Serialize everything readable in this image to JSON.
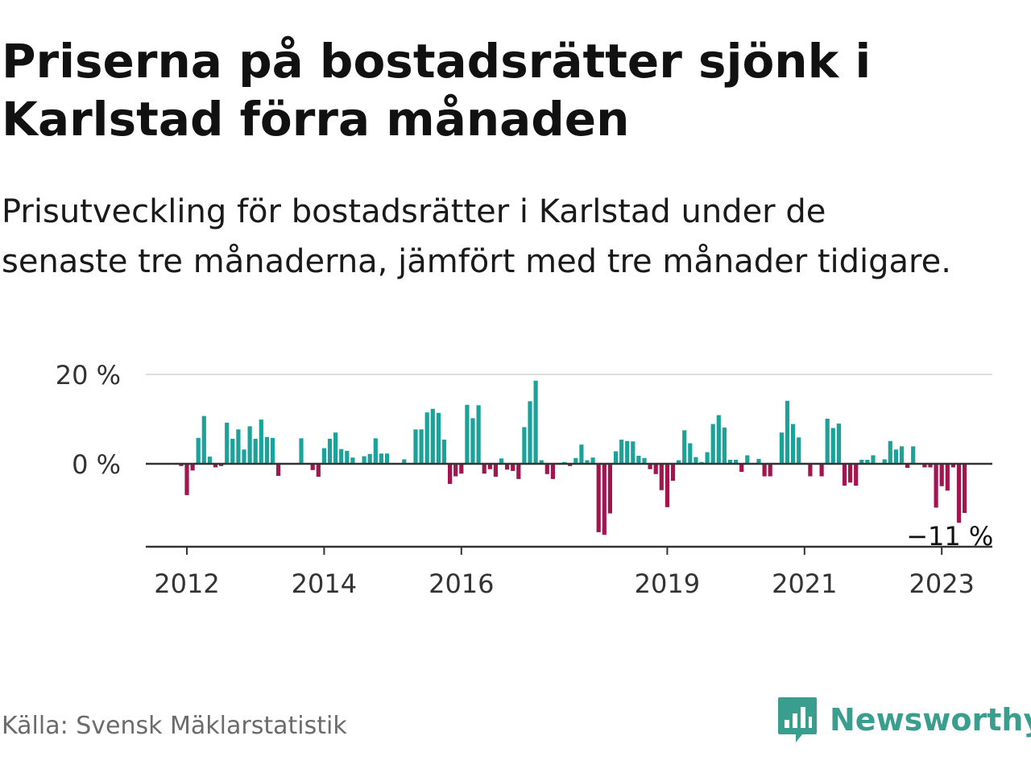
{
  "header": {
    "title": "Priserna på bostadsrätter sjönk i Karlstad förra månaden",
    "subtitle": "Prisutveckling för bostadsrätter i Karlstad under de senaste tre månaderna, jämfört med tre månader tidigare."
  },
  "footer": {
    "source": "Källa: Svensk Mäklarstatistik",
    "brand": "Newsworthy"
  },
  "colors": {
    "positive": "#1aa39a",
    "negative": "#a3154f",
    "grid": "#dddddd",
    "zero_line": "#333333",
    "axis": "#333333",
    "brand": "#3a9e8f"
  },
  "chart_data": {
    "type": "bar",
    "title": "",
    "xlabel": "",
    "ylabel": "",
    "y_unit": "%",
    "ylim": [
      -18,
      20
    ],
    "y_ticks": [
      {
        "value": 0,
        "label": "0 %"
      },
      {
        "value": 20,
        "label": "20 %"
      }
    ],
    "x_ticks": [
      {
        "date": "2012-01",
        "label": "2012"
      },
      {
        "date": "2014-01",
        "label": "2014"
      },
      {
        "date": "2016-01",
        "label": "2016"
      },
      {
        "date": "2019-01",
        "label": "2019"
      },
      {
        "date": "2021-01",
        "label": "2021"
      },
      {
        "date": "2023-01",
        "label": "2023"
      }
    ],
    "start_month": "2011-12",
    "annotation": {
      "date": "2023-01",
      "label": "−11 %",
      "value": -11
    },
    "grid": true,
    "values": [
      -0.5,
      -7,
      -1.5,
      5.8,
      10.7,
      1.6,
      -0.8,
      -0.5,
      9.2,
      5.6,
      7.7,
      3.2,
      8.4,
      5.6,
      9.9,
      6,
      5.8,
      -2.7,
      null,
      null,
      null,
      5.7,
      null,
      -1.4,
      -2.9,
      3.5,
      5.6,
      7,
      3.3,
      2.9,
      1.4,
      null,
      1.7,
      2.2,
      5.7,
      2.3,
      2.3,
      null,
      null,
      1,
      null,
      7.7,
      7.7,
      11.5,
      12.3,
      11.4,
      5.4,
      -4.5,
      -2.8,
      -2.2,
      13.2,
      10.2,
      13.1,
      -2.2,
      -1.2,
      -2.9,
      1.2,
      -1.3,
      -1.6,
      -3.4,
      8.2,
      14,
      18.6,
      0.8,
      -2.3,
      -3.4,
      null,
      0.4,
      -0.5,
      1.3,
      4.3,
      0.8,
      1.4,
      -15.3,
      -15.9,
      -11.1,
      2.8,
      5.4,
      5.1,
      5,
      1.8,
      1.3,
      -1.2,
      -2.3,
      -5.9,
      -9.7,
      -3.8,
      0.8,
      7.5,
      4.6,
      1.5,
      0.4,
      2.6,
      8.9,
      10.9,
      8.1,
      0.9,
      0.9,
      -1.8,
      1.9,
      null,
      1.1,
      -2.8,
      -2.8,
      null,
      7,
      14.1,
      8.9,
      5.9,
      null,
      -2.8,
      null,
      -2.8,
      10.1,
      8,
      9,
      -4.9,
      -4.2,
      -4.9,
      0.9,
      0.9,
      1.9,
      null,
      1,
      5.1,
      3.2,
      3.9,
      -0.9,
      3.9,
      null,
      -0.8,
      -0.8,
      -9.8,
      -5,
      -6,
      -0.8,
      -13.2,
      -11
    ]
  }
}
